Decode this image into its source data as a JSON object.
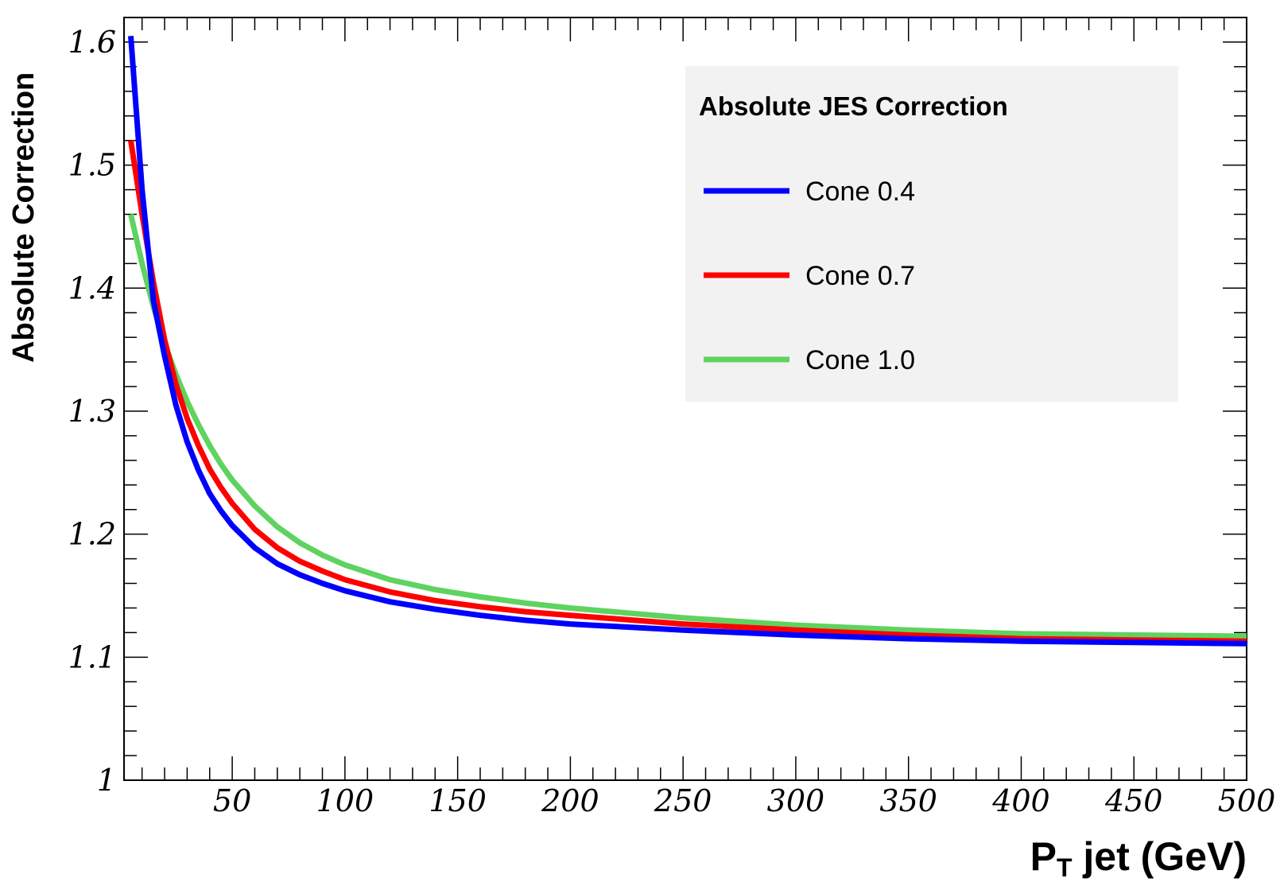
{
  "chart_data": {
    "type": "line",
    "xlabel_main": "P",
    "xlabel_sub": "T",
    "xlabel_rest": " jet (GeV)",
    "ylabel": "Absolute Correction",
    "xlim": [
      2,
      500
    ],
    "ylim": [
      1.0,
      1.62
    ],
    "x_ticks": [
      50,
      100,
      150,
      200,
      250,
      300,
      350,
      400,
      450,
      500
    ],
    "x_tick_labels": [
      "50",
      "100",
      "150",
      "200",
      "250",
      "300",
      "350",
      "400",
      "450",
      "500"
    ],
    "y_ticks": [
      1.0,
      1.1,
      1.2,
      1.3,
      1.4,
      1.5,
      1.6
    ],
    "y_tick_labels": [
      "1",
      "1.1",
      "1.2",
      "1.3",
      "1.4",
      "1.5",
      "1.6"
    ],
    "grid": false,
    "legend": {
      "title": "Absolute JES Correction",
      "position": "top-right",
      "background": "#f2f2f2"
    },
    "x": [
      5,
      10,
      15,
      20,
      25,
      30,
      35,
      40,
      45,
      50,
      60,
      70,
      80,
      90,
      100,
      120,
      140,
      160,
      180,
      200,
      250,
      300,
      350,
      400,
      450,
      500
    ],
    "series": [
      {
        "name": "Cone 0.4",
        "color": "#0000ff",
        "values": [
          1.605,
          1.48,
          1.39,
          1.345,
          1.305,
          1.275,
          1.252,
          1.233,
          1.219,
          1.207,
          1.189,
          1.176,
          1.167,
          1.16,
          1.154,
          1.145,
          1.139,
          1.134,
          1.13,
          1.127,
          1.122,
          1.118,
          1.115,
          1.113,
          1.112,
          1.111
        ]
      },
      {
        "name": "Cone 0.7",
        "color": "#ff0000",
        "values": [
          1.52,
          1.46,
          1.405,
          1.358,
          1.322,
          1.294,
          1.272,
          1.253,
          1.238,
          1.225,
          1.204,
          1.189,
          1.178,
          1.17,
          1.163,
          1.153,
          1.146,
          1.141,
          1.137,
          1.134,
          1.127,
          1.122,
          1.118,
          1.115,
          1.114,
          1.113
        ]
      },
      {
        "name": "Cone 1.0",
        "color": "#5fd35f",
        "values": [
          1.46,
          1.42,
          1.385,
          1.355,
          1.33,
          1.308,
          1.289,
          1.272,
          1.257,
          1.244,
          1.223,
          1.206,
          1.193,
          1.183,
          1.175,
          1.163,
          1.155,
          1.149,
          1.144,
          1.14,
          1.132,
          1.126,
          1.122,
          1.119,
          1.118,
          1.117
        ]
      }
    ]
  }
}
